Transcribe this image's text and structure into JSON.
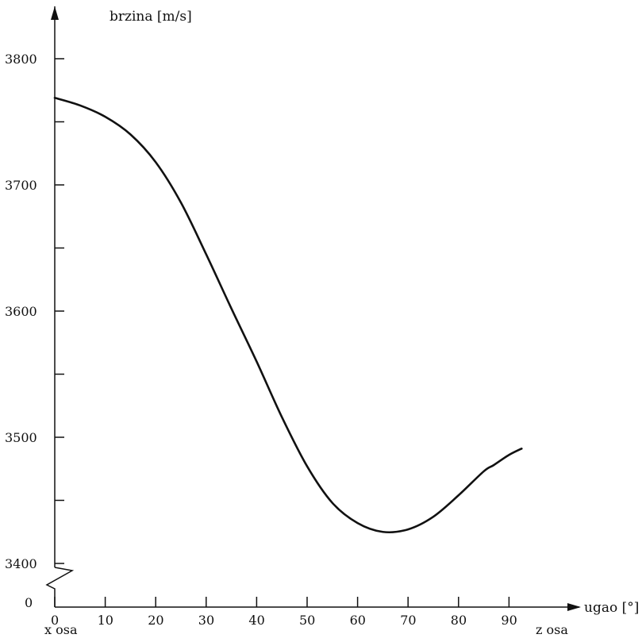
{
  "chart_data": {
    "type": "line",
    "ylabel": "brzina [m/s]",
    "xlabel": "ugao [°]",
    "x_axis_start_note": "x osa",
    "x_axis_end_note": "z osa",
    "y_zero_label": "0",
    "x_ticks": [
      0,
      10,
      20,
      30,
      40,
      50,
      60,
      70,
      80,
      90
    ],
    "y_ticks": [
      3400,
      3500,
      3600,
      3700,
      3800
    ],
    "y_minor_ticks": [
      3450,
      3550,
      3650,
      3750
    ],
    "xlim": [
      0,
      100
    ],
    "ylim": [
      3400,
      3835
    ],
    "grid": false,
    "series": [
      {
        "x": [
          0,
          5,
          10,
          15,
          20,
          25,
          30,
          35,
          40,
          45,
          50,
          55,
          60,
          65,
          70,
          75,
          80,
          85,
          87,
          90,
          92.5
        ],
        "y": [
          3769,
          3763,
          3754,
          3740,
          3718,
          3686,
          3645,
          3602,
          3560,
          3516,
          3477,
          3448,
          3432,
          3425,
          3427,
          3437,
          3454,
          3473,
          3478,
          3486,
          3491
        ]
      }
    ]
  }
}
